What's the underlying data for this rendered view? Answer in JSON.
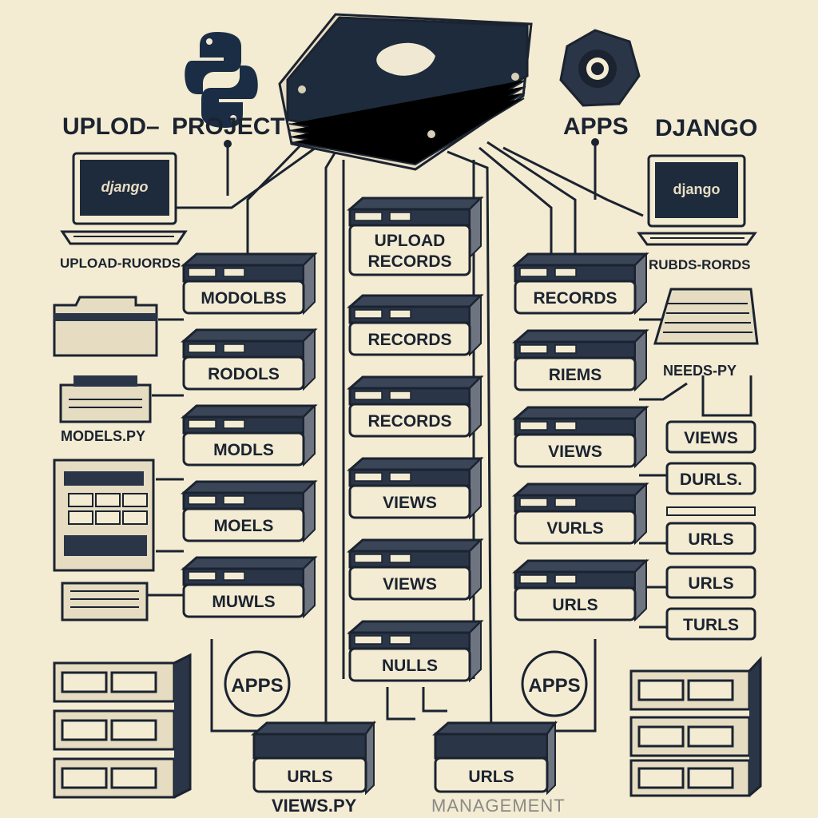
{
  "header": {
    "left_title_1": "UPLOD–",
    "left_title_2": "PROJECT",
    "right_title_1": "APPS",
    "right_title_2": "DJANGO"
  },
  "laptops": {
    "left_screen": "django",
    "right_screen": "django",
    "left_caption": "UPLOAD-RUORDS",
    "right_caption": "RUBDS-RORDS"
  },
  "left_column": [
    "MODOLBS",
    "RODOLS",
    "MODLS",
    "MOELS",
    "MUWLS"
  ],
  "center_column": [
    "UPLOAD\nRECORDS",
    "RECORDS",
    "RECORDS",
    "VIEWS",
    "VIEWS",
    "NULLS"
  ],
  "right_column": [
    "RECORDS",
    "RIEMS",
    "VIEWS",
    "VURLS",
    "URLS"
  ],
  "right_side_labels": [
    "VIEWS",
    "DURLS.",
    "URLS",
    "URLS",
    "TURLS"
  ],
  "side_captions": {
    "left_models": "MODELS.PY",
    "right_needs": "NEEDS-PY"
  },
  "apps_badges": [
    "APPS",
    "APPS"
  ],
  "bottom": {
    "left_box": "URLS",
    "right_box": "URLS",
    "left_caption": "VIEWS.PY",
    "right_caption": "MANAGEMENT"
  }
}
